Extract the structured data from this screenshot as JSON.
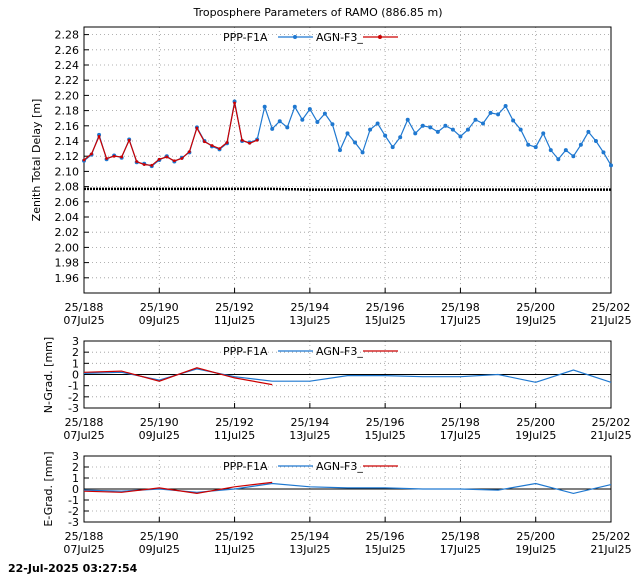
{
  "timestamp": "22-Jul-2025 03:27:54",
  "chart_data": [
    {
      "type": "line",
      "title": "Troposphere Parameters of RAMO (886.85 m)",
      "ylabel": "Zenith Total Delay [m]",
      "xlabel": "",
      "xlim": [
        188,
        202
      ],
      "ylim": [
        1.94,
        2.29
      ],
      "yticks": [
        "1.96",
        "1.98",
        "2.00",
        "2.02",
        "2.04",
        "2.06",
        "2.08",
        "2.10",
        "2.12",
        "2.14",
        "2.16",
        "2.18",
        "2.20",
        "2.22",
        "2.24",
        "2.26",
        "2.28"
      ],
      "xticks": [
        {
          "doy": "25/188",
          "date": "07Jul25"
        },
        {
          "doy": "25/190",
          "date": "09Jul25"
        },
        {
          "doy": "25/192",
          "date": "11Jul25"
        },
        {
          "doy": "25/194",
          "date": "13Jul25"
        },
        {
          "doy": "25/196",
          "date": "15Jul25"
        },
        {
          "doy": "25/198",
          "date": "17Jul25"
        },
        {
          "doy": "25/200",
          "date": "19Jul25"
        },
        {
          "doy": "25/202",
          "date": "21Jul25"
        }
      ],
      "grid": true,
      "legend_position": "top",
      "series": [
        {
          "name": "PPP-F1A",
          "color": "#1f78d0",
          "x": [
            188.0,
            188.2,
            188.4,
            188.6,
            188.8,
            189.0,
            189.2,
            189.4,
            189.6,
            189.8,
            190.0,
            190.2,
            190.4,
            190.6,
            190.8,
            191.0,
            191.2,
            191.4,
            191.6,
            191.8,
            192.0,
            192.2,
            192.4,
            192.6,
            192.8,
            193.0,
            193.2,
            193.4,
            193.6,
            193.8,
            194.0,
            194.2,
            194.4,
            194.6,
            194.8,
            195.0,
            195.2,
            195.4,
            195.6,
            195.8,
            196.0,
            196.2,
            196.4,
            196.6,
            196.8,
            197.0,
            197.2,
            197.4,
            197.6,
            197.8,
            198.0,
            198.2,
            198.4,
            198.6,
            198.8,
            199.0,
            199.2,
            199.4,
            199.6,
            199.8,
            200.0,
            200.2,
            200.4,
            200.6,
            200.8,
            201.0,
            201.2,
            201.4,
            201.6,
            201.8,
            202.0
          ],
          "y": [
            2.114,
            2.122,
            2.148,
            2.116,
            2.121,
            2.118,
            2.142,
            2.112,
            2.11,
            2.107,
            2.115,
            2.12,
            2.113,
            2.118,
            2.125,
            2.158,
            2.14,
            2.133,
            2.129,
            2.137,
            2.192,
            2.14,
            2.138,
            2.142,
            2.185,
            2.156,
            2.166,
            2.158,
            2.185,
            2.168,
            2.182,
            2.165,
            2.176,
            2.162,
            2.128,
            2.15,
            2.138,
            2.125,
            2.155,
            2.163,
            2.147,
            2.132,
            2.145,
            2.168,
            2.15,
            2.16,
            2.158,
            2.152,
            2.16,
            2.155,
            2.146,
            2.155,
            2.168,
            2.163,
            2.177,
            2.175,
            2.186,
            2.167,
            2.155,
            2.135,
            2.132,
            2.15,
            2.128,
            2.116,
            2.128,
            2.12,
            2.135,
            2.152,
            2.14,
            2.125,
            2.108
          ]
        },
        {
          "name": "AGN-F3_",
          "color": "#cc0000",
          "x": [
            188.0,
            188.2,
            188.4,
            188.6,
            188.8,
            189.0,
            189.2,
            189.4,
            189.6,
            189.8,
            190.0,
            190.2,
            190.4,
            190.6,
            190.8,
            191.0,
            191.2,
            191.4,
            191.6,
            191.8,
            192.0,
            192.2,
            192.4,
            192.6
          ],
          "y": [
            2.115,
            2.123,
            2.146,
            2.117,
            2.12,
            2.119,
            2.141,
            2.113,
            2.109,
            2.108,
            2.116,
            2.119,
            2.114,
            2.117,
            2.126,
            2.157,
            2.139,
            2.134,
            2.13,
            2.138,
            2.19,
            2.141,
            2.137,
            2.141
          ]
        },
        {
          "name": "",
          "color": "#000000",
          "x": [
            188.0,
            190.0,
            192.0,
            193.0,
            194.0,
            196.0,
            198.0,
            200.0,
            202.0
          ],
          "y": [
            2.077,
            2.077,
            2.077,
            2.077,
            2.076,
            2.076,
            2.076,
            2.076,
            2.076
          ]
        }
      ]
    },
    {
      "type": "line",
      "title": "",
      "ylabel": "N-Grad. [mm]",
      "xlabel": "",
      "xlim": [
        188,
        202
      ],
      "ylim": [
        -3,
        3
      ],
      "yticks": [
        "-3",
        "-2",
        "-1",
        "0",
        "1",
        "2",
        "3"
      ],
      "xticks": [
        {
          "doy": "25/188",
          "date": "07Jul25"
        },
        {
          "doy": "25/190",
          "date": "09Jul25"
        },
        {
          "doy": "25/192",
          "date": "11Jul25"
        },
        {
          "doy": "25/194",
          "date": "13Jul25"
        },
        {
          "doy": "25/196",
          "date": "15Jul25"
        },
        {
          "doy": "25/198",
          "date": "17Jul25"
        },
        {
          "doy": "25/200",
          "date": "19Jul25"
        },
        {
          "doy": "25/202",
          "date": "21Jul25"
        }
      ],
      "grid": true,
      "legend_position": "top",
      "series": [
        {
          "name": "PPP-F1A",
          "color": "#1f78d0",
          "x": [
            188,
            189,
            190,
            191,
            192,
            193,
            194,
            195,
            196,
            197,
            198,
            199,
            200,
            201,
            202
          ],
          "y": [
            0.1,
            0.2,
            -0.5,
            0.5,
            -0.2,
            -0.6,
            -0.6,
            -0.1,
            -0.1,
            -0.2,
            -0.2,
            0.0,
            -0.7,
            0.4,
            -0.7
          ]
        },
        {
          "name": "AGN-F3_",
          "color": "#cc0000",
          "x": [
            188,
            189,
            190,
            191,
            192,
            193
          ],
          "y": [
            0.2,
            0.3,
            -0.6,
            0.6,
            -0.3,
            -0.9
          ]
        }
      ]
    },
    {
      "type": "line",
      "title": "",
      "ylabel": "E-Grad. [mm]",
      "xlabel": "",
      "xlim": [
        188,
        202
      ],
      "ylim": [
        -3,
        3
      ],
      "yticks": [
        "-3",
        "-2",
        "-1",
        "0",
        "1",
        "2",
        "3"
      ],
      "xticks": [
        {
          "doy": "25/188",
          "date": "07Jul25"
        },
        {
          "doy": "25/190",
          "date": "09Jul25"
        },
        {
          "doy": "25/192",
          "date": "11Jul25"
        },
        {
          "doy": "25/194",
          "date": "13Jul25"
        },
        {
          "doy": "25/196",
          "date": "15Jul25"
        },
        {
          "doy": "25/198",
          "date": "17Jul25"
        },
        {
          "doy": "25/200",
          "date": "19Jul25"
        },
        {
          "doy": "25/202",
          "date": "21Jul25"
        }
      ],
      "grid": true,
      "legend_position": "top",
      "series": [
        {
          "name": "PPP-F1A",
          "color": "#1f78d0",
          "x": [
            188,
            189,
            190,
            191,
            192,
            193,
            194,
            195,
            196,
            197,
            198,
            199,
            200,
            201,
            202
          ],
          "y": [
            -0.1,
            -0.2,
            0.0,
            -0.3,
            0.0,
            0.5,
            0.2,
            0.1,
            0.1,
            0.0,
            0.0,
            -0.1,
            0.5,
            -0.4,
            0.4
          ]
        },
        {
          "name": "AGN-F3_",
          "color": "#cc0000",
          "x": [
            188,
            189,
            190,
            191,
            192,
            193
          ],
          "y": [
            -0.2,
            -0.3,
            0.1,
            -0.4,
            0.2,
            0.6
          ]
        }
      ]
    }
  ]
}
